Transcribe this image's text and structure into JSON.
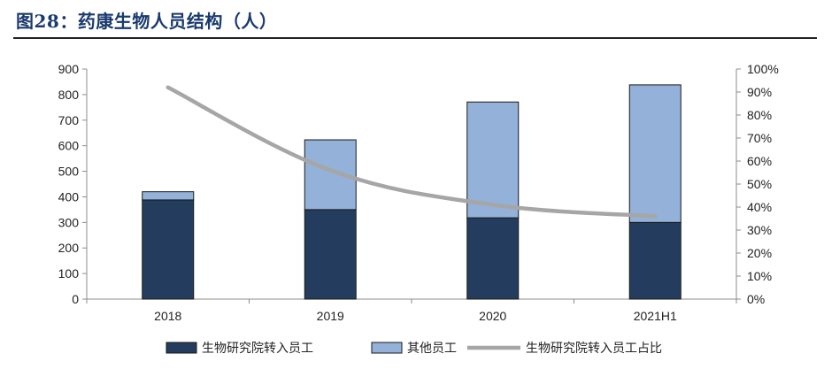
{
  "title": "图28：药康生物人员结构（人）",
  "chart_data": {
    "type": "bar",
    "stacked": true,
    "categories": [
      "2018",
      "2019",
      "2020",
      "2021H1"
    ],
    "series": [
      {
        "name": "生物研究院转入员工",
        "kind": "bar",
        "axis": "left",
        "color": "#243c5e",
        "values": [
          388,
          350,
          318,
          300
        ]
      },
      {
        "name": "其他员工",
        "kind": "bar",
        "axis": "left",
        "color": "#93b1d9",
        "values": [
          32,
          273,
          453,
          538
        ]
      },
      {
        "name": "生物研究院转入员工占比",
        "kind": "line",
        "axis": "right",
        "color": "#a6a6a6",
        "values": [
          92,
          56,
          41,
          36
        ]
      }
    ],
    "left_axis": {
      "min": 0,
      "max": 900,
      "step": 100,
      "ticks": [
        "0",
        "100",
        "200",
        "300",
        "400",
        "500",
        "600",
        "700",
        "800",
        "900"
      ]
    },
    "right_axis": {
      "min": 0,
      "max": 100,
      "step": 10,
      "ticks": [
        "0%",
        "10%",
        "20%",
        "30%",
        "40%",
        "50%",
        "60%",
        "70%",
        "80%",
        "90%",
        "100%"
      ]
    },
    "legend_position": "bottom"
  }
}
